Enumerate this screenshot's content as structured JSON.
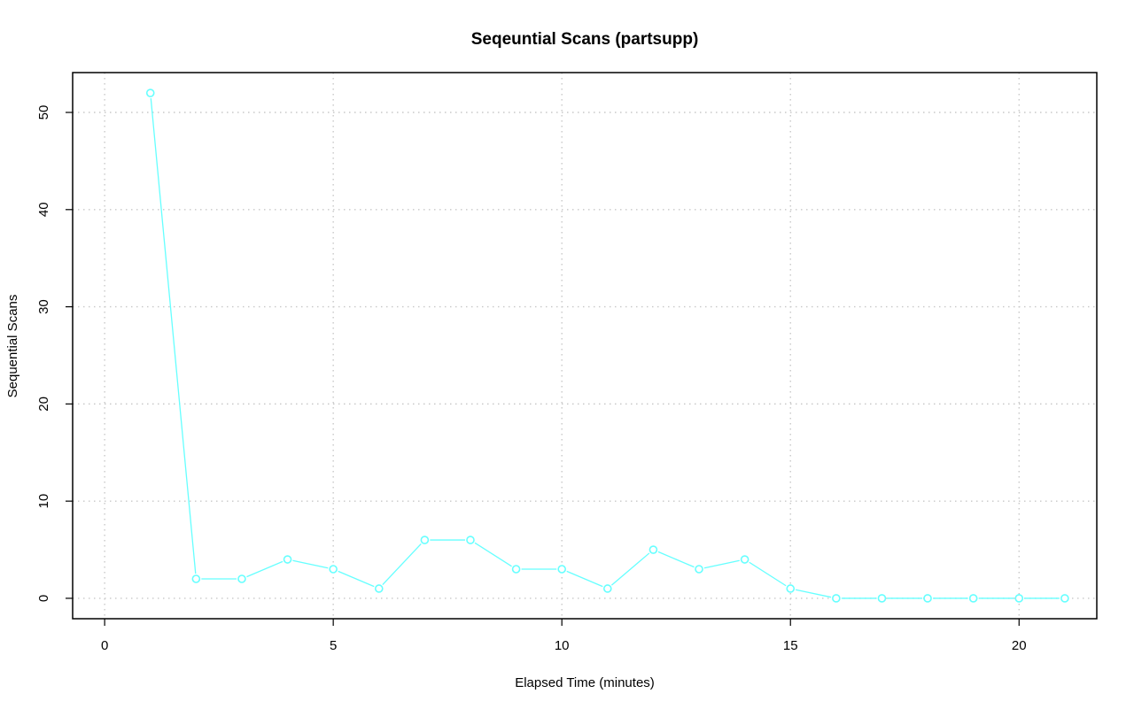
{
  "chart_data": {
    "type": "line",
    "title": "Seqeuntial Scans (partsupp)",
    "xlabel": "Elapsed Time (minutes)",
    "ylabel": "Sequential Scans",
    "xlim": [
      -0.7,
      21.7
    ],
    "ylim": [
      -2.1,
      54.1
    ],
    "xticks": [
      0,
      5,
      10,
      15,
      20
    ],
    "yticks": [
      0,
      10,
      20,
      30,
      40,
      50
    ],
    "grid": true,
    "legend": "none",
    "series": [
      {
        "color": "#66ffff",
        "x": [
          1,
          2,
          3,
          4,
          5,
          6,
          7,
          8,
          9,
          10,
          11,
          12,
          13,
          14,
          15,
          16,
          17,
          18,
          19,
          20,
          21
        ],
        "y": [
          52,
          2,
          2,
          4,
          3,
          1,
          6,
          6,
          3,
          3,
          1,
          5,
          3,
          4,
          1,
          0,
          0,
          0,
          0,
          0,
          0
        ]
      }
    ]
  }
}
